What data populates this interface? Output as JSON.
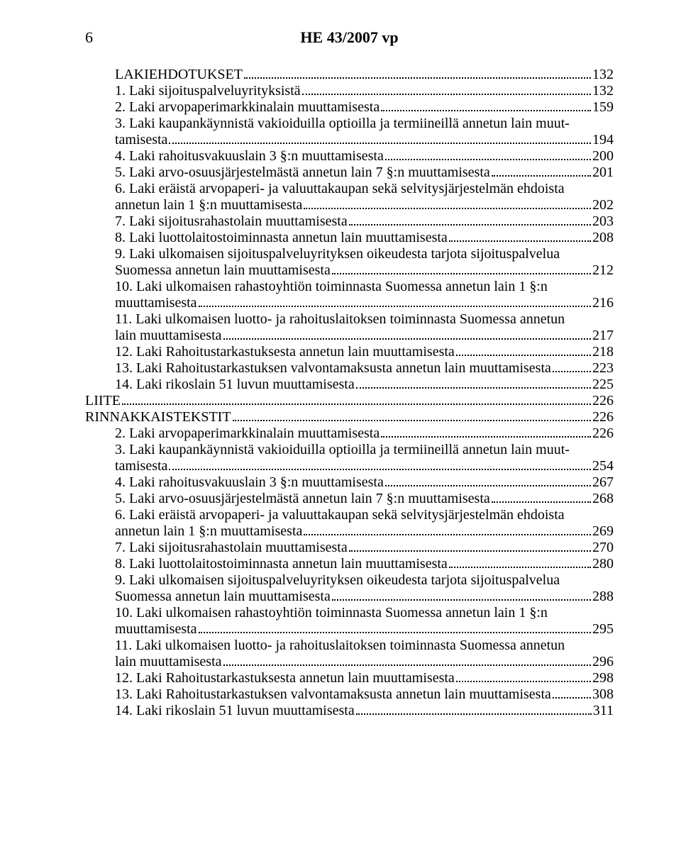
{
  "page_number": "6",
  "doc_title": "HE 43/2007 vp",
  "toc": [
    {
      "indent": 1,
      "label": "LAKIEHDOTUKSET",
      "page": "132"
    },
    {
      "indent": 1,
      "label": "1. Laki sijoituspalveluyrityksistä",
      "page": "132"
    },
    {
      "indent": 1,
      "label": "2. Laki arvopaperimarkkinalain muuttamisesta",
      "page": "159"
    },
    {
      "indent": 1,
      "lines": [
        "3. Laki kaupankäynnistä vakioiduilla optioilla ja termiineillä annetun lain muut-",
        "tamisesta"
      ],
      "page": "194"
    },
    {
      "indent": 1,
      "label": "4. Laki rahoitusvakuuslain 3 §:n muuttamisesta",
      "page": "200"
    },
    {
      "indent": 1,
      "label": "5. Laki arvo-osuusjärjestelmästä annetun lain 7 §:n muuttamisesta",
      "page": "201"
    },
    {
      "indent": 1,
      "lines": [
        "6. Laki eräistä arvopaperi- ja valuuttakaupan sekä selvitysjärjestelmän ehdoista",
        "annetun lain 1 §:n muuttamisesta"
      ],
      "page": "202"
    },
    {
      "indent": 1,
      "label": "7. Laki sijoitusrahastolain muuttamisesta",
      "page": "203"
    },
    {
      "indent": 1,
      "label": "8. Laki luottolaitostoiminnasta annetun lain muuttamisesta",
      "page": "208"
    },
    {
      "indent": 1,
      "lines": [
        "9. Laki ulkomaisen sijoituspalveluyrityksen oikeudesta tarjota sijoituspalvelua",
        "Suomessa annetun lain muuttamisesta"
      ],
      "page": "212"
    },
    {
      "indent": 1,
      "lines": [
        "10. Laki ulkomaisen rahastoyhtiön toiminnasta Suomessa annetun lain 1 §:n",
        "muuttamisesta"
      ],
      "page": "216"
    },
    {
      "indent": 1,
      "lines": [
        "11. Laki ulkomaisen luotto- ja rahoituslaitoksen toiminnasta Suomessa annetun",
        "lain muuttamisesta"
      ],
      "page": "217"
    },
    {
      "indent": 1,
      "label": "12. Laki Rahoitustarkastuksesta annetun lain muuttamisesta",
      "page": "218"
    },
    {
      "indent": 1,
      "label": "13. Laki Rahoitustarkastuksen valvontamaksusta annetun lain muuttamisesta",
      "page": "223"
    },
    {
      "indent": 1,
      "label": "14. Laki rikoslain 51 luvun muuttamisesta",
      "page": "225"
    },
    {
      "indent": 0,
      "label": "LIITE",
      "page": "226"
    },
    {
      "indent": 0,
      "label": "RINNAKKAISTEKSTIT",
      "page": "226"
    },
    {
      "indent": 1,
      "label": "2. Laki arvopaperimarkkinalain muuttamisesta",
      "page": "226"
    },
    {
      "indent": 1,
      "lines": [
        "3. Laki kaupankäynnistä vakioiduilla optioilla ja termiineillä annetun lain muut-",
        "tamisesta"
      ],
      "page": "254"
    },
    {
      "indent": 1,
      "label": "4. Laki rahoitusvakuuslain 3 §:n muuttamisesta",
      "page": "267"
    },
    {
      "indent": 1,
      "label": "5. Laki arvo-osuusjärjestelmästä annetun lain 7 §:n muuttamisesta",
      "page": "268"
    },
    {
      "indent": 1,
      "lines": [
        "6. Laki eräistä arvopaperi- ja valuuttakaupan sekä selvitysjärjestelmän ehdoista",
        "annetun lain 1 §:n muuttamisesta"
      ],
      "page": "269"
    },
    {
      "indent": 1,
      "label": "7. Laki sijoitusrahastolain muuttamisesta",
      "page": "270"
    },
    {
      "indent": 1,
      "label": "8. Laki luottolaitostoiminnasta annetun lain muuttamisesta",
      "page": "280"
    },
    {
      "indent": 1,
      "lines": [
        "9. Laki ulkomaisen sijoituspalveluyrityksen oikeudesta tarjota sijoituspalvelua",
        "Suomessa annetun lain muuttamisesta"
      ],
      "page": "288"
    },
    {
      "indent": 1,
      "lines": [
        "10. Laki ulkomaisen rahastoyhtiön toiminnasta Suomessa annetun lain 1 §:n",
        "muuttamisesta"
      ],
      "page": "295"
    },
    {
      "indent": 1,
      "lines": [
        "11. Laki ulkomaisen luotto- ja rahoituslaitoksen toiminnasta Suomessa annetun",
        "lain muuttamisesta"
      ],
      "page": "296"
    },
    {
      "indent": 1,
      "label": "12. Laki Rahoitustarkastuksesta annetun lain muuttamisesta",
      "page": "298"
    },
    {
      "indent": 1,
      "label": "13. Laki Rahoitustarkastuksen valvontamaksusta annetun lain muuttamisesta",
      "page": "308"
    },
    {
      "indent": 1,
      "label": "14. Laki rikoslain 51 luvun muuttamisesta",
      "page": "311"
    }
  ]
}
